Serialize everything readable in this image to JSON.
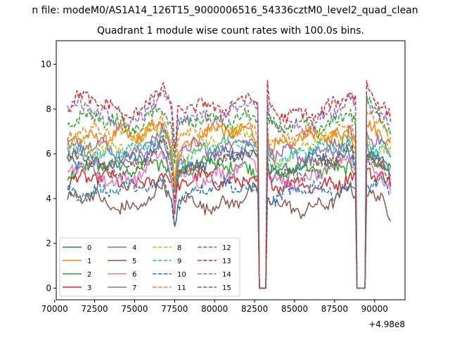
{
  "suptitle": "n file: modeM0/AS1A14_126T15_9000006516_54336cztM0_level2_quad_clean",
  "chart_data": {
    "type": "line",
    "title": "Quadrant 1 module wise count rates with 100.0s bins.",
    "xlabel": "",
    "ylabel": "",
    "xlim": [
      70100,
      91900
    ],
    "ylim": [
      -0.52,
      11.05
    ],
    "x_offset_label": "+4.98e8",
    "xticks": [
      70000,
      72500,
      75000,
      77500,
      80000,
      82500,
      85000,
      87500,
      90000
    ],
    "xtick_labels": [
      "70000",
      "72500",
      "75000",
      "77500",
      "80000",
      "82500",
      "85000",
      "87500",
      "90000"
    ],
    "yticks": [
      0,
      2,
      4,
      6,
      8,
      10
    ],
    "ytick_labels": [
      "0",
      "2",
      "4",
      "6",
      "8",
      "10"
    ],
    "x_range": [
      70800,
      91000
    ],
    "bin_step": 100,
    "profile_x": [
      70800,
      71500,
      73000,
      74500,
      75500,
      76000,
      76500,
      76700,
      77000,
      77300,
      77500,
      77700,
      78000,
      79000,
      80000,
      81000,
      82000,
      82400,
      82700,
      82800,
      82850,
      83200,
      83300,
      83400,
      84000,
      85000,
      86000,
      87000,
      88000,
      88400,
      88800,
      88900,
      88950,
      89400,
      89500,
      89600,
      90000,
      90500,
      91000
    ],
    "profile_y": [
      1.0,
      1.02,
      0.98,
      0.96,
      1.0,
      1.05,
      1.08,
      1.12,
      1.05,
      0.95,
      0.7,
      0.92,
      0.95,
      0.98,
      1.0,
      1.02,
      1.05,
      1.05,
      1.0,
      0.0,
      0.0,
      0.0,
      1.05,
      0.95,
      0.92,
      0.94,
      0.97,
      1.0,
      1.03,
      1.08,
      1.0,
      0.0,
      0.0,
      0.0,
      1.1,
      1.06,
      1.02,
      1.0,
      0.92
    ],
    "series": [
      {
        "name": "0",
        "color": "#1f77b4",
        "dash": "solid",
        "level": 5.7
      },
      {
        "name": "1",
        "color": "#ff7f0e",
        "dash": "solid",
        "level": 6.8
      },
      {
        "name": "2",
        "color": "#2ca02c",
        "dash": "solid",
        "level": 5.4
      },
      {
        "name": "3",
        "color": "#d62728",
        "dash": "solid",
        "level": 4.8
      },
      {
        "name": "4",
        "color": "#9467bd",
        "dash": "solid",
        "level": 6.3
      },
      {
        "name": "5",
        "color": "#8c564b",
        "dash": "solid",
        "level": 3.9
      },
      {
        "name": "6",
        "color": "#e377c2",
        "dash": "solid",
        "level": 5.2
      },
      {
        "name": "7",
        "color": "#7f7f7f",
        "dash": "solid",
        "level": 5.9
      },
      {
        "name": "8",
        "color": "#bcbd22",
        "dash": "dashed",
        "level": 6.5
      },
      {
        "name": "9",
        "color": "#17becf",
        "dash": "dashed",
        "level": 6.2
      },
      {
        "name": "10",
        "color": "#1f77b4",
        "dash": "dashed",
        "level": 4.4
      },
      {
        "name": "11",
        "color": "#ff7f0e",
        "dash": "dashed",
        "level": 7.0
      },
      {
        "name": "12",
        "color": "#2ca02c",
        "dash": "dashed",
        "level": 7.5
      },
      {
        "name": "13",
        "color": "#d62728",
        "dash": "dashed",
        "level": 8.2
      },
      {
        "name": "14",
        "color": "#9467bd",
        "dash": "dashed",
        "level": 7.8
      },
      {
        "name": "15",
        "color": "#8c564b",
        "dash": "dashed",
        "level": 5.6
      }
    ],
    "legend_position": "lower-left",
    "legend_columns": 4
  }
}
